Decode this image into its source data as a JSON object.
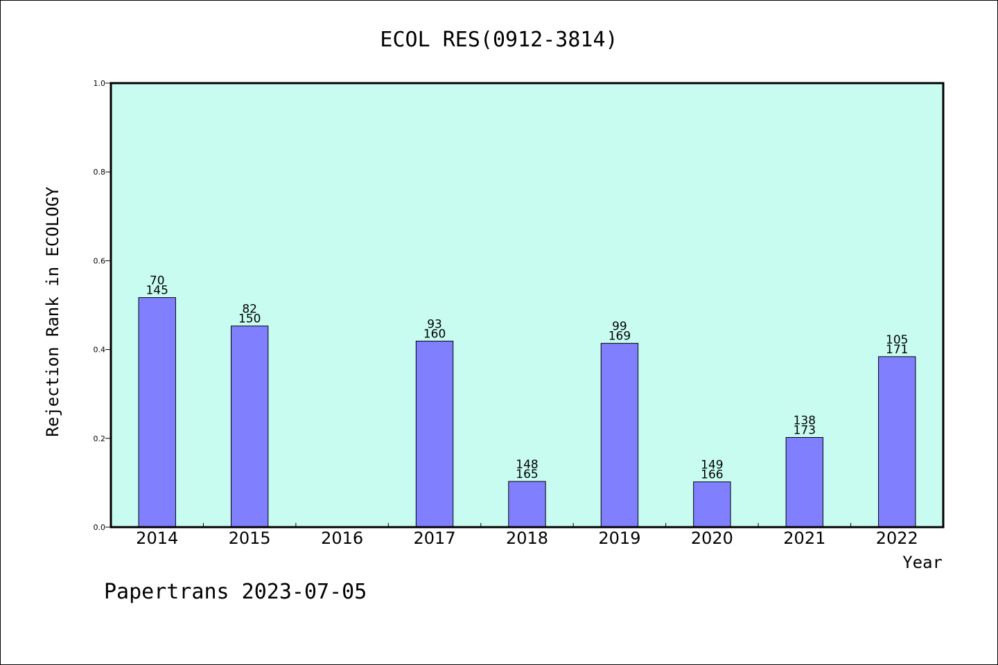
{
  "chart_data": {
    "type": "bar",
    "title": "ECOL RES(0912-3814)",
    "xlabel": "Year",
    "ylabel": "Rejection Rank in ECOLOGY",
    "ylim": [
      0,
      1.0
    ],
    "yticks": [
      "0.0",
      "0.2",
      "0.4",
      "0.6",
      "0.8",
      "1.0"
    ],
    "categories": [
      "2014",
      "2015",
      "2016",
      "2017",
      "2018",
      "2019",
      "2020",
      "2021",
      "2022"
    ],
    "values": [
      0.517,
      0.453,
      null,
      0.419,
      0.103,
      0.414,
      0.102,
      0.202,
      0.384
    ],
    "labels_top": [
      "70",
      "82",
      "",
      "93",
      "148",
      "99",
      "149",
      "138",
      "105"
    ],
    "labels_bottom": [
      "145",
      "150",
      "",
      "160",
      "165",
      "169",
      "166",
      "173",
      "171"
    ],
    "grid": false,
    "colors": {
      "plot_bg": "#c8fcf0",
      "bar": "#8080ff",
      "bar_edge": "#000000"
    }
  },
  "footer": "Papertrans 2023-07-05"
}
